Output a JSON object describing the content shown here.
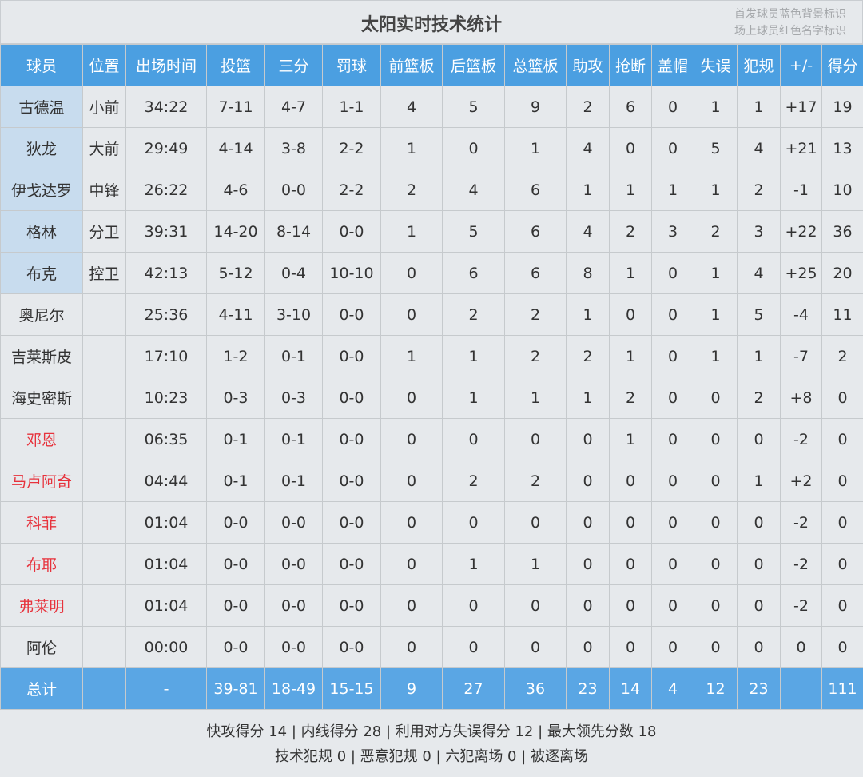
{
  "title": "太阳实时技术统计",
  "legend": [
    "首发球员蓝色背景标识",
    "场上球员红色名字标识"
  ],
  "colors": {
    "header_bg": "#4b9fe1",
    "starter_bg": "#c8dcee",
    "oncourt_name": "#e7323c"
  },
  "columns": [
    "球员",
    "位置",
    "出场时间",
    "投篮",
    "三分",
    "罚球",
    "前篮板",
    "后篮板",
    "总篮板",
    "助攻",
    "抢断",
    "盖帽",
    "失误",
    "犯规",
    "+/-",
    "得分"
  ],
  "players": [
    {
      "starter": true,
      "oncourt": false,
      "cells": [
        "古德温",
        "小前",
        "34:22",
        "7-11",
        "4-7",
        "1-1",
        "4",
        "5",
        "9",
        "2",
        "6",
        "0",
        "1",
        "1",
        "+17",
        "19"
      ]
    },
    {
      "starter": true,
      "oncourt": false,
      "cells": [
        "狄龙",
        "大前",
        "29:49",
        "4-14",
        "3-8",
        "2-2",
        "1",
        "0",
        "1",
        "4",
        "0",
        "0",
        "5",
        "4",
        "+21",
        "13"
      ]
    },
    {
      "starter": true,
      "oncourt": false,
      "cells": [
        "伊戈达罗",
        "中锋",
        "26:22",
        "4-6",
        "0-0",
        "2-2",
        "2",
        "4",
        "6",
        "1",
        "1",
        "1",
        "1",
        "2",
        "-1",
        "10"
      ]
    },
    {
      "starter": true,
      "oncourt": false,
      "cells": [
        "格林",
        "分卫",
        "39:31",
        "14-20",
        "8-14",
        "0-0",
        "1",
        "5",
        "6",
        "4",
        "2",
        "3",
        "2",
        "3",
        "+22",
        "36"
      ]
    },
    {
      "starter": true,
      "oncourt": false,
      "cells": [
        "布克",
        "控卫",
        "42:13",
        "5-12",
        "0-4",
        "10-10",
        "0",
        "6",
        "6",
        "8",
        "1",
        "0",
        "1",
        "4",
        "+25",
        "20"
      ]
    },
    {
      "starter": false,
      "oncourt": false,
      "cells": [
        "奥尼尔",
        "",
        "25:36",
        "4-11",
        "3-10",
        "0-0",
        "0",
        "2",
        "2",
        "1",
        "0",
        "0",
        "1",
        "5",
        "-4",
        "11"
      ]
    },
    {
      "starter": false,
      "oncourt": false,
      "cells": [
        "吉莱斯皮",
        "",
        "17:10",
        "1-2",
        "0-1",
        "0-0",
        "1",
        "1",
        "2",
        "2",
        "1",
        "0",
        "1",
        "1",
        "-7",
        "2"
      ]
    },
    {
      "starter": false,
      "oncourt": false,
      "cells": [
        "海史密斯",
        "",
        "10:23",
        "0-3",
        "0-3",
        "0-0",
        "0",
        "1",
        "1",
        "1",
        "2",
        "0",
        "0",
        "2",
        "+8",
        "0"
      ]
    },
    {
      "starter": false,
      "oncourt": true,
      "cells": [
        "邓恩",
        "",
        "06:35",
        "0-1",
        "0-1",
        "0-0",
        "0",
        "0",
        "0",
        "0",
        "1",
        "0",
        "0",
        "0",
        "-2",
        "0"
      ]
    },
    {
      "starter": false,
      "oncourt": true,
      "cells": [
        "马卢阿奇",
        "",
        "04:44",
        "0-1",
        "0-1",
        "0-0",
        "0",
        "2",
        "2",
        "0",
        "0",
        "0",
        "0",
        "1",
        "+2",
        "0"
      ]
    },
    {
      "starter": false,
      "oncourt": true,
      "cells": [
        "科菲",
        "",
        "01:04",
        "0-0",
        "0-0",
        "0-0",
        "0",
        "0",
        "0",
        "0",
        "0",
        "0",
        "0",
        "0",
        "-2",
        "0"
      ]
    },
    {
      "starter": false,
      "oncourt": true,
      "cells": [
        "布耶",
        "",
        "01:04",
        "0-0",
        "0-0",
        "0-0",
        "0",
        "1",
        "1",
        "0",
        "0",
        "0",
        "0",
        "0",
        "-2",
        "0"
      ]
    },
    {
      "starter": false,
      "oncourt": true,
      "cells": [
        "弗莱明",
        "",
        "01:04",
        "0-0",
        "0-0",
        "0-0",
        "0",
        "0",
        "0",
        "0",
        "0",
        "0",
        "0",
        "0",
        "-2",
        "0"
      ]
    },
    {
      "starter": false,
      "oncourt": false,
      "cells": [
        "阿伦",
        "",
        "00:00",
        "0-0",
        "0-0",
        "0-0",
        "0",
        "0",
        "0",
        "0",
        "0",
        "0",
        "0",
        "0",
        "0",
        "0"
      ]
    }
  ],
  "totals": [
    "总计",
    "",
    "-",
    "39-81",
    "18-49",
    "15-15",
    "9",
    "27",
    "36",
    "23",
    "14",
    "4",
    "12",
    "23",
    "",
    "111"
  ],
  "footer": {
    "line1": "快攻得分 14 | 内线得分 28 | 利用对方失误得分 12 | 最大领先分数 18",
    "line2": "技术犯规 0 | 恶意犯规 0 | 六犯离场 0 | 被逐离场"
  }
}
